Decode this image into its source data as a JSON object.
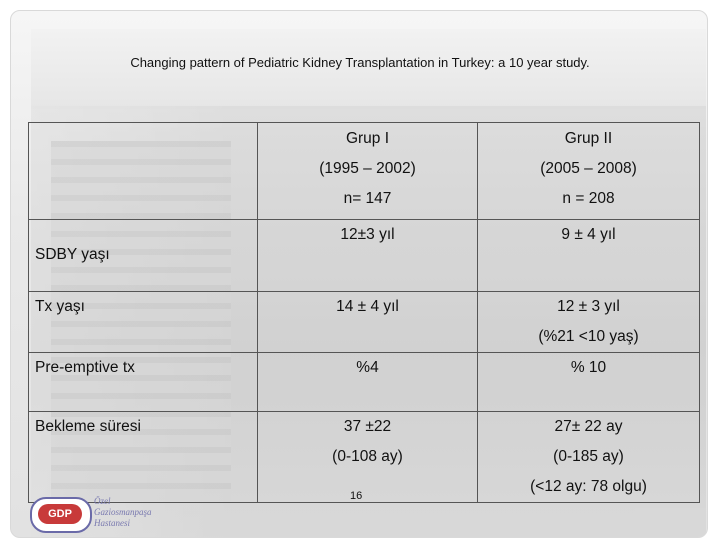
{
  "title": "Changing pattern of Pediatric Kidney Transplantation in Turkey: a 10 year study.",
  "table": {
    "headers": [
      {
        "lines": []
      },
      {
        "lines": [
          "Grup I",
          "(1995 – 2002)",
          "n= 147"
        ]
      },
      {
        "lines": [
          "Grup II",
          "(2005 – 2008)",
          "n = 208"
        ]
      }
    ],
    "rows": [
      {
        "label": "SDBY yaşı",
        "g1": [
          "12±3 yıl"
        ],
        "g2": [
          "9 ± 4 yıl"
        ]
      },
      {
        "label": "Tx yaşı",
        "g1": [
          "14 ± 4  yıl"
        ],
        "g2": [
          "12 ± 3 yıl",
          "(%21 <10 yaş)"
        ]
      },
      {
        "label": "Pre-emptive tx",
        "g1": [
          "%4"
        ],
        "g2": [
          "% 10"
        ]
      },
      {
        "label": "Bekleme süresi",
        "g1": [
          "37 ±22",
          "(0-108 ay)"
        ],
        "g2": [
          "27± 22 ay",
          "(0-185 ay)",
          "(<12 ay: 78 olgu)"
        ]
      }
    ]
  },
  "page_number": "16",
  "logo": {
    "badge": "GDP",
    "lines": [
      "Özel",
      "Gaziosmanpaşa",
      "Hastanesi"
    ]
  }
}
